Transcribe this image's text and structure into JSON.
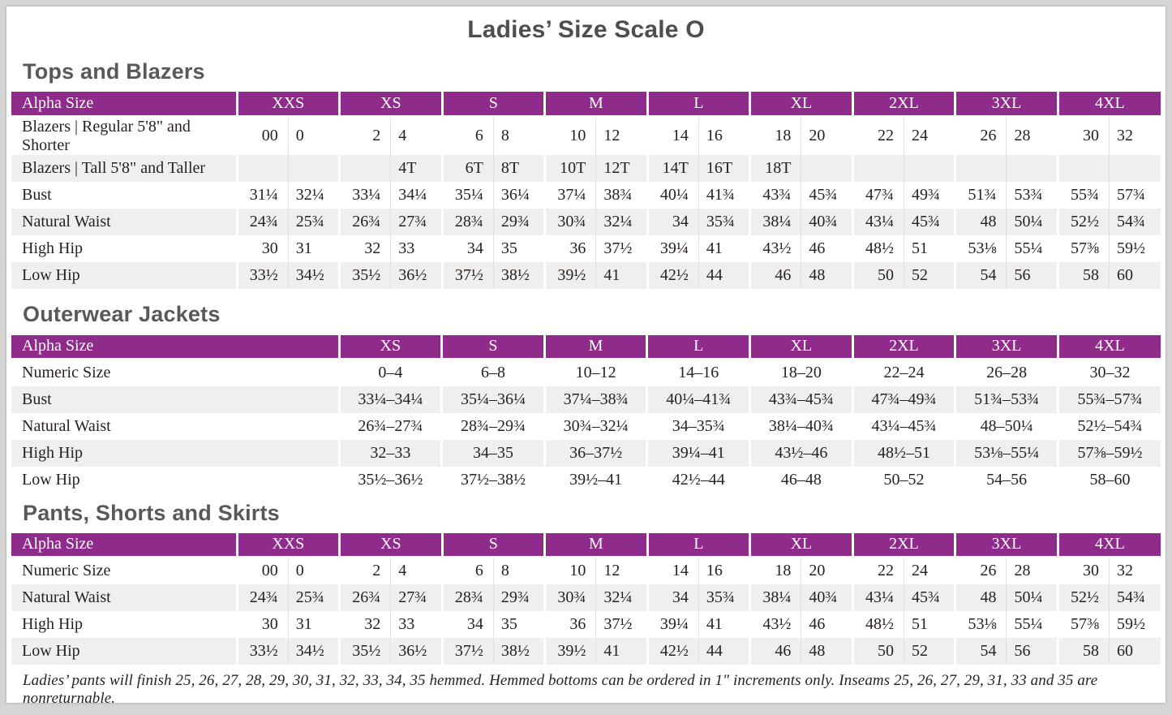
{
  "page_title": "Ladies’ Size Scale O",
  "colors": {
    "header_purple": "#8f2b8b",
    "row_alt": "#f1efed",
    "table_text": "#27221f",
    "heading_gray": "#595959",
    "page_frame": "#d5d5d5"
  },
  "sections": [
    {
      "title": "Tops and Blazers",
      "table": {
        "label_header": "Alpha Size",
        "split_columns": true,
        "sizes": [
          "XXS",
          "XS",
          "S",
          "M",
          "L",
          "XL",
          "2XL",
          "3XL",
          "4XL"
        ],
        "rows": [
          {
            "label": "Blazers  |  Regular 5'8\" and Shorter",
            "cells": [
              [
                "00",
                "0"
              ],
              [
                "2",
                "4"
              ],
              [
                "6",
                "8"
              ],
              [
                "10",
                "12"
              ],
              [
                "14",
                "16"
              ],
              [
                "18",
                "20"
              ],
              [
                "22",
                "24"
              ],
              [
                "26",
                "28"
              ],
              [
                "30",
                "32"
              ]
            ]
          },
          {
            "label": "Blazers  |  Tall 5'8\" and Taller",
            "cells": [
              [
                "",
                ""
              ],
              [
                "",
                "4T"
              ],
              [
                "6T",
                "8T"
              ],
              [
                "10T",
                "12T"
              ],
              [
                "14T",
                "16T"
              ],
              [
                "18T",
                ""
              ],
              [
                "",
                ""
              ],
              [
                "",
                ""
              ],
              [
                "",
                ""
              ]
            ]
          },
          {
            "label": "Bust",
            "cells": [
              [
                "31¼",
                "32¼"
              ],
              [
                "33¼",
                "34¼"
              ],
              [
                "35¼",
                "36¼"
              ],
              [
                "37¼",
                "38¾"
              ],
              [
                "40¼",
                "41¾"
              ],
              [
                "43¾",
                "45¾"
              ],
              [
                "47¾",
                "49¾"
              ],
              [
                "51¾",
                "53¾"
              ],
              [
                "55¾",
                "57¾"
              ]
            ]
          },
          {
            "label": "Natural Waist",
            "cells": [
              [
                "24¾",
                "25¾"
              ],
              [
                "26¾",
                "27¾"
              ],
              [
                "28¾",
                "29¾"
              ],
              [
                "30¾",
                "32¼"
              ],
              [
                "34",
                "35¾"
              ],
              [
                "38¼",
                "40¾"
              ],
              [
                "43¼",
                "45¾"
              ],
              [
                "48",
                "50¼"
              ],
              [
                "52½",
                "54¾"
              ]
            ]
          },
          {
            "label": "High Hip",
            "cells": [
              [
                "30",
                "31"
              ],
              [
                "32",
                "33"
              ],
              [
                "34",
                "35"
              ],
              [
                "36",
                "37½"
              ],
              [
                "39¼",
                "41"
              ],
              [
                "43½",
                "46"
              ],
              [
                "48½",
                "51"
              ],
              [
                "53⅛",
                "55¼"
              ],
              [
                "57⅜",
                "59½"
              ]
            ]
          },
          {
            "label": "Low Hip",
            "cells": [
              [
                "33½",
                "34½"
              ],
              [
                "35½",
                "36½"
              ],
              [
                "37½",
                "38½"
              ],
              [
                "39½",
                "41"
              ],
              [
                "42½",
                "44"
              ],
              [
                "46",
                "48"
              ],
              [
                "50",
                "52"
              ],
              [
                "54",
                "56"
              ],
              [
                "58",
                "60"
              ]
            ]
          }
        ]
      }
    },
    {
      "title": "Outerwear Jackets",
      "table": {
        "label_header": "Alpha Size",
        "split_columns": false,
        "sizes": [
          "XS",
          "S",
          "M",
          "L",
          "XL",
          "2XL",
          "3XL",
          "4XL"
        ],
        "rows": [
          {
            "label": "Numeric Size",
            "cells": [
              "0–4",
              "6–8",
              "10–12",
              "14–16",
              "18–20",
              "22–24",
              "26–28",
              "30–32"
            ]
          },
          {
            "label": "Bust",
            "cells": [
              "33¼–34¼",
              "35¼–36¼",
              "37¼–38¾",
              "40¼–41¾",
              "43¾–45¾",
              "47¾–49¾",
              "51¾–53¾",
              "55¾–57¾"
            ]
          },
          {
            "label": "Natural Waist",
            "cells": [
              "26¾–27¾",
              "28¾–29¾",
              "30¾–32¼",
              "34–35¾",
              "38¼–40¾",
              "43¼–45¾",
              "48–50¼",
              "52½–54¾"
            ]
          },
          {
            "label": "High Hip",
            "cells": [
              "32–33",
              "34–35",
              "36–37½",
              "39¼–41",
              "43½–46",
              "48½–51",
              "53⅛–55¼",
              "57⅜–59½"
            ]
          },
          {
            "label": "Low Hip",
            "cells": [
              "35½–36½",
              "37½–38½",
              "39½–41",
              "42½–44",
              "46–48",
              "50–52",
              "54–56",
              "58–60"
            ]
          }
        ]
      }
    },
    {
      "title": "Pants, Shorts and Skirts",
      "table": {
        "label_header": "Alpha Size",
        "split_columns": true,
        "sizes": [
          "XXS",
          "XS",
          "S",
          "M",
          "L",
          "XL",
          "2XL",
          "3XL",
          "4XL"
        ],
        "rows": [
          {
            "label": "Numeric Size",
            "cells": [
              [
                "00",
                "0"
              ],
              [
                "2",
                "4"
              ],
              [
                "6",
                "8"
              ],
              [
                "10",
                "12"
              ],
              [
                "14",
                "16"
              ],
              [
                "18",
                "20"
              ],
              [
                "22",
                "24"
              ],
              [
                "26",
                "28"
              ],
              [
                "30",
                "32"
              ]
            ]
          },
          {
            "label": "Natural Waist",
            "cells": [
              [
                "24¾",
                "25¾"
              ],
              [
                "26¾",
                "27¾"
              ],
              [
                "28¾",
                "29¾"
              ],
              [
                "30¾",
                "32¼"
              ],
              [
                "34",
                "35¾"
              ],
              [
                "38¼",
                "40¾"
              ],
              [
                "43¼",
                "45¾"
              ],
              [
                "48",
                "50¼"
              ],
              [
                "52½",
                "54¾"
              ]
            ]
          },
          {
            "label": "High Hip",
            "cells": [
              [
                "30",
                "31"
              ],
              [
                "32",
                "33"
              ],
              [
                "34",
                "35"
              ],
              [
                "36",
                "37½"
              ],
              [
                "39¼",
                "41"
              ],
              [
                "43½",
                "46"
              ],
              [
                "48½",
                "51"
              ],
              [
                "53⅛",
                "55¼"
              ],
              [
                "57⅜",
                "59½"
              ]
            ]
          },
          {
            "label": "Low Hip",
            "cells": [
              [
                "33½",
                "34½"
              ],
              [
                "35½",
                "36½"
              ],
              [
                "37½",
                "38½"
              ],
              [
                "39½",
                "41"
              ],
              [
                "42½",
                "44"
              ],
              [
                "46",
                "48"
              ],
              [
                "50",
                "52"
              ],
              [
                "54",
                "56"
              ],
              [
                "58",
                "60"
              ]
            ]
          }
        ]
      }
    }
  ],
  "footnote": "Ladies’ pants will finish 25, 26, 27, 28, 29, 30, 31, 32, 33, 34, 35 hemmed. Hemmed bottoms can be ordered in 1\" increments only. Inseams 25, 26, 27, 29, 31, 33 and 35 are nonreturnable."
}
